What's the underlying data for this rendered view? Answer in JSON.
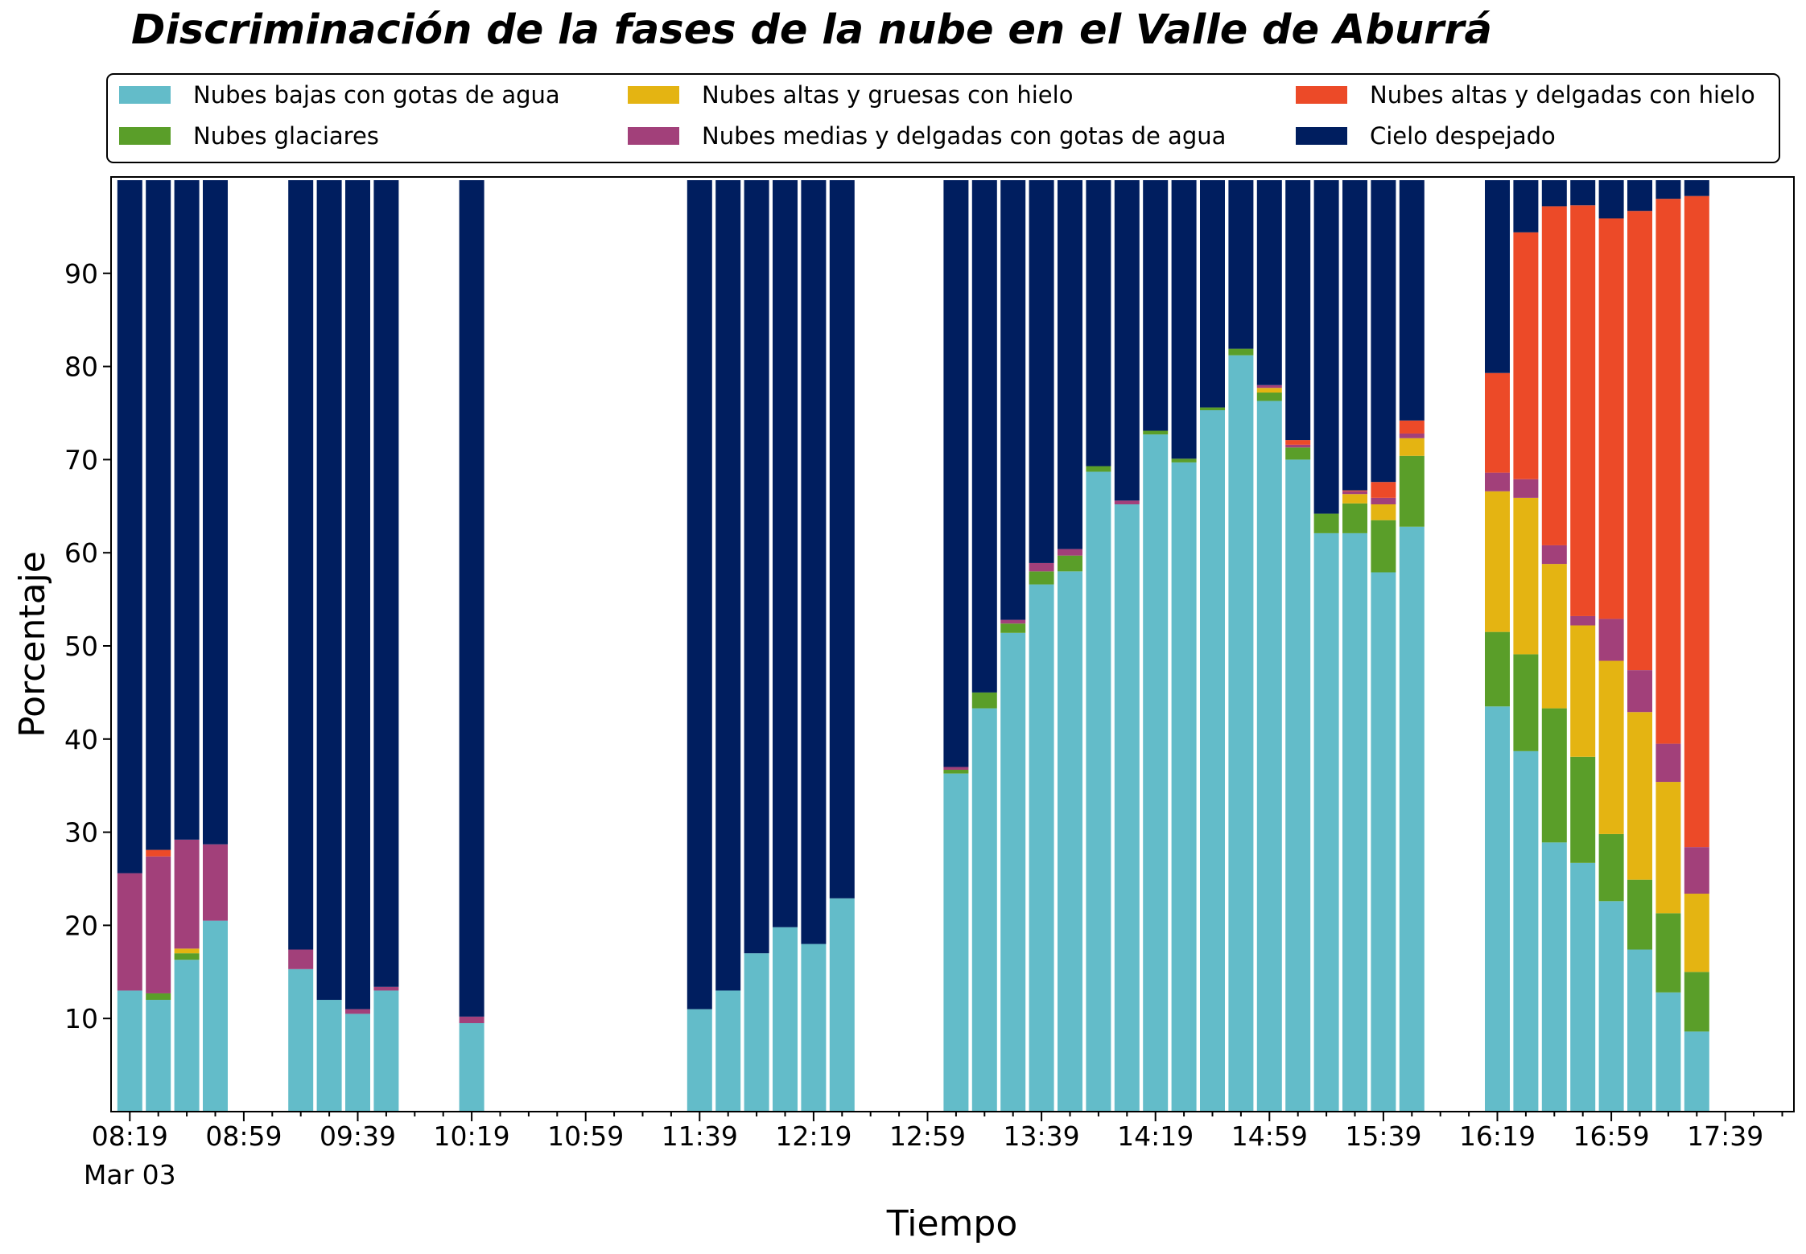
{
  "chart_data": {
    "type": "bar",
    "stacked": true,
    "title": "Discriminación de la fases de la nube en el Valle de Aburrá",
    "xlabel": "Tiempo",
    "ylabel": "Porcentaje",
    "ylim": [
      0,
      100
    ],
    "yticks": [
      10,
      20,
      30,
      40,
      50,
      60,
      70,
      80,
      90
    ],
    "grid": false,
    "legend_position": "top",
    "x_tick_labels": [
      "08:19",
      "08:59",
      "09:39",
      "10:19",
      "10:59",
      "11:39",
      "12:19",
      "12:59",
      "13:39",
      "14:19",
      "14:59",
      "15:39",
      "16:19",
      "16:59",
      "17:39"
    ],
    "x_date_label": "Mar 03",
    "slots": 59,
    "x_start": "08:19",
    "x_step_minutes": 10,
    "series": [
      {
        "name": "Nubes bajas con gotas de agua",
        "color": "#63bcc9"
      },
      {
        "name": "Nubes glaciares",
        "color": "#5a9e29"
      },
      {
        "name": "Nubes altas y gruesas con hielo",
        "color": "#e4b412"
      },
      {
        "name": "Nubes medias y delgadas con gotas de agua",
        "color": "#a2407a"
      },
      {
        "name": "Nubes altas y delgadas con hielo",
        "color": "#ec4a28"
      },
      {
        "name": "Cielo despejado",
        "color": "#001e5f"
      }
    ],
    "legend_order": [
      0,
      1,
      2,
      3,
      4,
      5
    ],
    "bars": [
      {
        "time": "08:19",
        "values": [
          13.0,
          0,
          0,
          12.6,
          0,
          74.4
        ]
      },
      {
        "time": "08:29",
        "values": [
          12.0,
          0.7,
          0,
          14.7,
          0.7,
          71.9
        ]
      },
      {
        "time": "08:39",
        "values": [
          16.3,
          0.7,
          0.5,
          11.7,
          0,
          70.8
        ]
      },
      {
        "time": "08:49",
        "values": [
          20.5,
          0,
          0,
          8.2,
          0,
          71.3
        ]
      },
      {
        "time": "09:19",
        "values": [
          15.3,
          0,
          0,
          2.1,
          0,
          82.6
        ]
      },
      {
        "time": "09:29",
        "values": [
          12.0,
          0,
          0,
          0,
          0,
          88.0
        ]
      },
      {
        "time": "09:39",
        "values": [
          10.5,
          0,
          0,
          0.5,
          0,
          89.0
        ]
      },
      {
        "time": "09:49",
        "values": [
          13.0,
          0,
          0,
          0.4,
          0,
          86.6
        ]
      },
      {
        "time": "10:19",
        "values": [
          9.5,
          0,
          0,
          0.7,
          0,
          89.8
        ]
      },
      {
        "time": "11:39",
        "values": [
          11.0,
          0,
          0,
          0,
          0,
          89.0
        ]
      },
      {
        "time": "11:49",
        "values": [
          13.0,
          0,
          0,
          0,
          0,
          87.0
        ]
      },
      {
        "time": "11:59",
        "values": [
          17.0,
          0,
          0,
          0,
          0,
          83.0
        ]
      },
      {
        "time": "12:09",
        "values": [
          19.8,
          0,
          0,
          0,
          0,
          80.2
        ]
      },
      {
        "time": "12:19",
        "values": [
          18.0,
          0,
          0,
          0,
          0,
          82.0
        ]
      },
      {
        "time": "12:29",
        "values": [
          22.9,
          0,
          0,
          0,
          0,
          77.1
        ]
      },
      {
        "time": "13:09",
        "values": [
          36.3,
          0.4,
          0,
          0.3,
          0,
          63.0
        ]
      },
      {
        "time": "13:19",
        "values": [
          43.3,
          1.7,
          0,
          0,
          0,
          55.0
        ]
      },
      {
        "time": "13:29",
        "values": [
          51.4,
          1.0,
          0,
          0.4,
          0,
          47.2
        ]
      },
      {
        "time": "13:39",
        "values": [
          56.6,
          1.4,
          0,
          0.9,
          0,
          41.1
        ]
      },
      {
        "time": "13:49",
        "values": [
          58.0,
          1.7,
          0,
          0.7,
          0,
          39.6
        ]
      },
      {
        "time": "13:59",
        "values": [
          68.7,
          0.6,
          0,
          0,
          0,
          30.7
        ]
      },
      {
        "time": "14:09",
        "values": [
          65.2,
          0,
          0,
          0.4,
          0,
          34.4
        ]
      },
      {
        "time": "14:19",
        "values": [
          72.7,
          0.4,
          0,
          0,
          0,
          26.9
        ]
      },
      {
        "time": "14:29",
        "values": [
          69.7,
          0.4,
          0,
          0,
          0,
          29.9
        ]
      },
      {
        "time": "14:39",
        "values": [
          75.3,
          0.3,
          0,
          0,
          0,
          24.4
        ]
      },
      {
        "time": "14:49",
        "values": [
          81.2,
          0.7,
          0,
          0,
          0,
          18.1
        ]
      },
      {
        "time": "14:59",
        "values": [
          76.3,
          0.9,
          0.5,
          0.3,
          0,
          22.0
        ]
      },
      {
        "time": "15:09",
        "values": [
          70.0,
          1.3,
          0,
          0.3,
          0.5,
          27.9
        ]
      },
      {
        "time": "15:19",
        "values": [
          62.1,
          2.1,
          0,
          0,
          0,
          35.8
        ]
      },
      {
        "time": "15:29",
        "values": [
          62.1,
          3.2,
          1.0,
          0.3,
          0.1,
          33.3
        ]
      },
      {
        "time": "15:39",
        "values": [
          57.9,
          5.6,
          1.7,
          0.7,
          1.7,
          32.4
        ]
      },
      {
        "time": "15:49",
        "values": [
          62.8,
          7.6,
          1.9,
          0.5,
          1.4,
          25.8
        ]
      },
      {
        "time": "16:19",
        "values": [
          43.5,
          8.0,
          15.1,
          2.0,
          10.7,
          20.7
        ]
      },
      {
        "time": "16:29",
        "values": [
          38.7,
          10.4,
          16.8,
          2.0,
          26.5,
          5.6
        ]
      },
      {
        "time": "16:39",
        "values": [
          28.9,
          14.4,
          15.5,
          2.0,
          36.4,
          2.8
        ]
      },
      {
        "time": "16:49",
        "values": [
          26.7,
          11.4,
          14.1,
          1.0,
          44.1,
          2.7
        ]
      },
      {
        "time": "16:59",
        "values": [
          22.6,
          7.2,
          18.6,
          4.5,
          43.0,
          4.1
        ]
      },
      {
        "time": "17:09",
        "values": [
          17.4,
          7.5,
          18.0,
          4.5,
          49.3,
          3.3
        ]
      },
      {
        "time": "17:19",
        "values": [
          12.8,
          8.5,
          14.1,
          4.1,
          58.5,
          2.0
        ]
      },
      {
        "time": "17:29",
        "values": [
          8.6,
          6.4,
          8.4,
          5.0,
          69.9,
          1.7
        ]
      }
    ]
  }
}
